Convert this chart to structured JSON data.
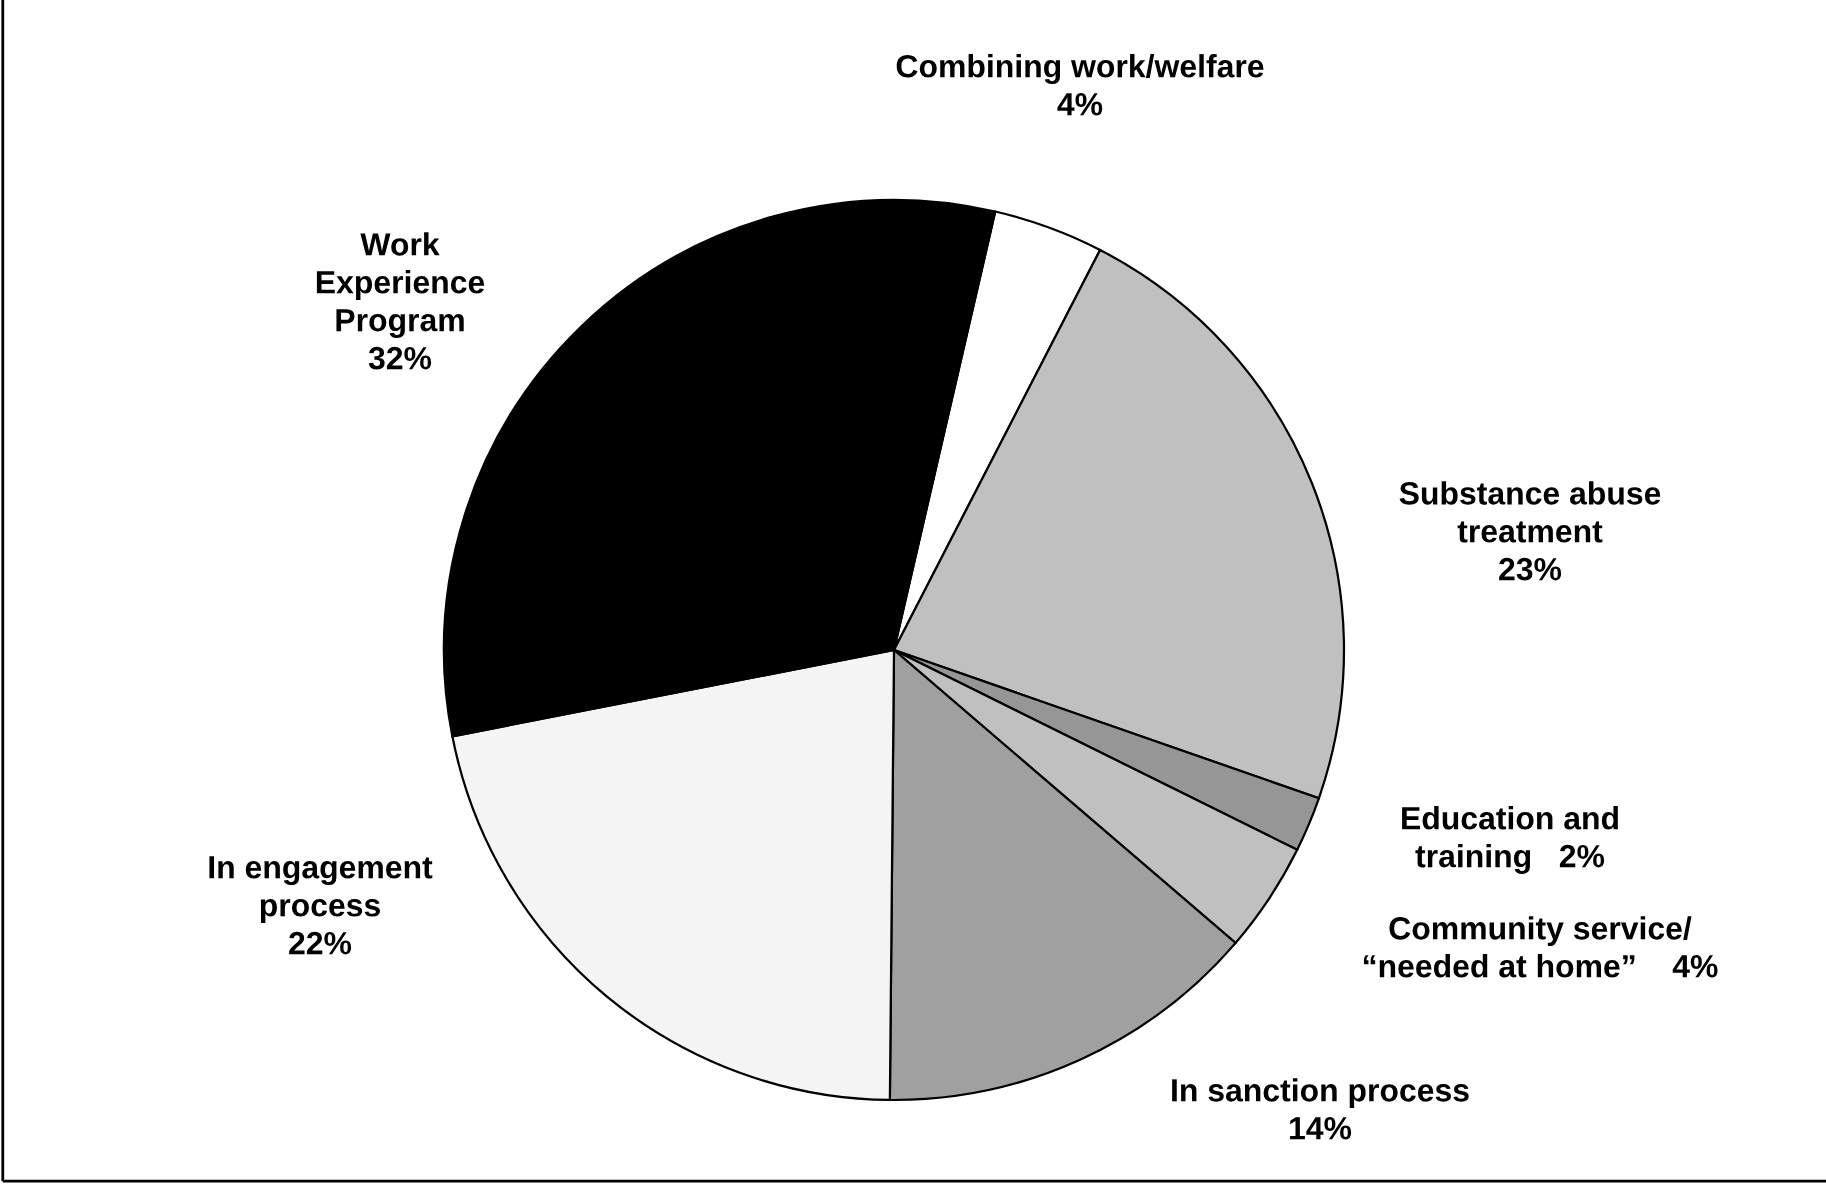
{
  "chart_data": {
    "type": "pie",
    "categories": [
      "Combining work/welfare",
      "Substance abuse\ntreatment",
      "Education and\ntraining",
      "Community service/\n“needed at home”",
      "In sanction process",
      "In engagement\nprocess",
      "Work\nExperience\nProgram"
    ],
    "values": [
      4,
      23,
      2,
      4,
      14,
      22,
      32
    ],
    "colors": [
      "#ffffff",
      "#c0c0c0",
      "#969696",
      "#c0c0c0",
      "#a0a0a0",
      "#f4f4f4",
      "#000000"
    ],
    "value_labels": [
      "4%",
      "23%",
      "2%",
      "4%",
      "14%",
      "22%",
      "32%"
    ]
  }
}
